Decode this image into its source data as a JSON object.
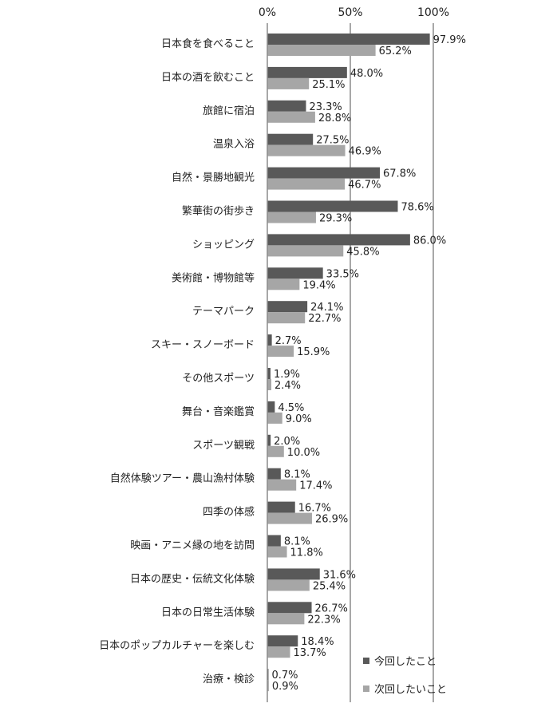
{
  "chart_data": {
    "type": "bar",
    "orientation": "horizontal",
    "categories": [
      "日本食を食べること",
      "日本の酒を飲むこと",
      "旅館に宿泊",
      "温泉入浴",
      "自然・景勝地観光",
      "繁華街の街歩き",
      "ショッピング",
      "美術館・博物館等",
      "テーマパーク",
      "スキー・スノーボード",
      "その他スポーツ",
      "舞台・音楽鑑賞",
      "スポーツ観戦",
      "自然体験ツアー・農山漁村体験",
      "四季の体感",
      "映画・アニメ縁の地を訪問",
      "日本の歴史・伝統文化体験",
      "日本の日常生活体験",
      "日本のポップカルチャーを楽しむ",
      "治療・検診"
    ],
    "series": [
      {
        "name": "今回したこと",
        "color": "#595959",
        "values": [
          97.9,
          48.0,
          23.3,
          27.5,
          67.8,
          78.6,
          86.0,
          33.5,
          24.1,
          2.7,
          1.9,
          4.5,
          2.0,
          8.1,
          16.7,
          8.1,
          31.6,
          26.7,
          18.4,
          0.7
        ],
        "labels": [
          "97.9%",
          "48.0%",
          "23.3%",
          "27.5%",
          "67.8%",
          "78.6%",
          "86.0%",
          "33.5%",
          "24.1%",
          "2.7%",
          "1.9%",
          "4.5%",
          "2.0%",
          "8.1%",
          "16.7%",
          "8.1%",
          "31.6%",
          "26.7%",
          "18.4%",
          "0.7%"
        ]
      },
      {
        "name": "次回したいこと",
        "color": "#a6a6a6",
        "values": [
          65.2,
          25.1,
          28.8,
          46.9,
          46.7,
          29.3,
          45.8,
          19.4,
          22.7,
          15.9,
          2.4,
          9.0,
          10.0,
          17.4,
          26.9,
          11.8,
          25.4,
          22.3,
          13.7,
          0.9
        ],
        "labels": [
          "65.2%",
          "25.1%",
          "28.8%",
          "46.9%",
          "46.7%",
          "29.3%",
          "45.8%",
          "19.4%",
          "22.7%",
          "15.9%",
          "2.4%",
          "9.0%",
          "10.0%",
          "17.4%",
          "26.9%",
          "11.8%",
          "25.4%",
          "22.3%",
          "13.7%",
          "0.9%"
        ]
      }
    ],
    "xlim": [
      0,
      100
    ],
    "xticks": [
      0,
      50,
      100
    ],
    "xtick_labels": [
      "0%",
      "50%",
      "100%"
    ],
    "grid": true,
    "legend": "bottom-right"
  }
}
